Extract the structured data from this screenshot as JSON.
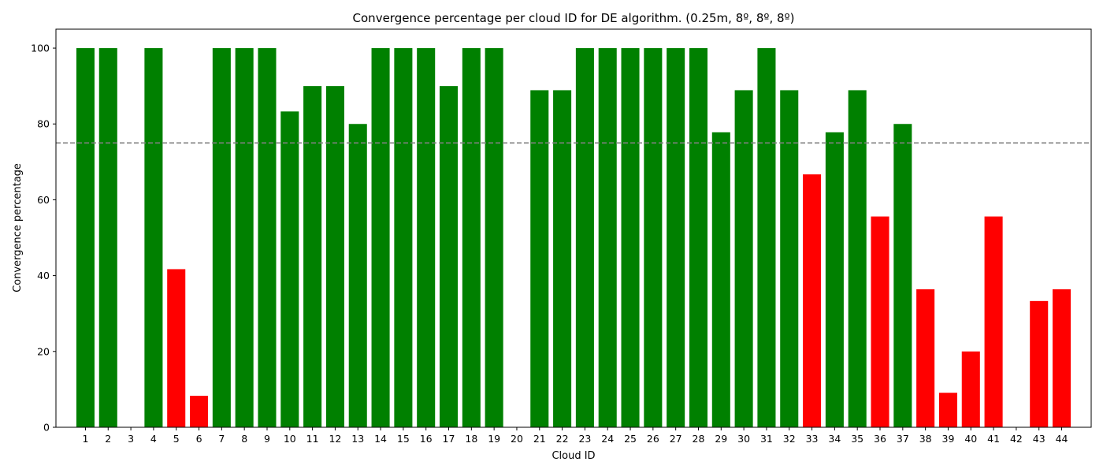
{
  "chart_data": {
    "type": "bar",
    "title": "Convergence percentage per cloud ID for DE algorithm. (0.25m, 8º, 8º, 8º)",
    "xlabel": "Cloud ID",
    "ylabel": "Convergence percentage",
    "ylim": [
      0,
      105
    ],
    "yticks": [
      0,
      20,
      40,
      60,
      80,
      100
    ],
    "threshold": 75,
    "grid": false,
    "colors": {
      "pass": "#008000",
      "fail": "#ff0000",
      "threshold_line": "#808080"
    },
    "categories": [
      "1",
      "2",
      "3",
      "4",
      "5",
      "6",
      "7",
      "8",
      "9",
      "10",
      "11",
      "12",
      "13",
      "14",
      "15",
      "16",
      "17",
      "18",
      "19",
      "20",
      "21",
      "22",
      "23",
      "24",
      "25",
      "26",
      "27",
      "28",
      "29",
      "30",
      "31",
      "32",
      "33",
      "34",
      "35",
      "36",
      "37",
      "38",
      "39",
      "40",
      "41",
      "42",
      "43",
      "44"
    ],
    "values": [
      100,
      100,
      0,
      100,
      41.7,
      8.3,
      100,
      100,
      100,
      83.3,
      90,
      90,
      80,
      100,
      100,
      100,
      90,
      100,
      100,
      0,
      88.9,
      88.9,
      100,
      100,
      100,
      100,
      100,
      100,
      77.8,
      88.9,
      100,
      88.9,
      66.7,
      77.8,
      88.9,
      55.6,
      80,
      36.4,
      9.1,
      20,
      55.6,
      0,
      33.3,
      36.4
    ]
  }
}
